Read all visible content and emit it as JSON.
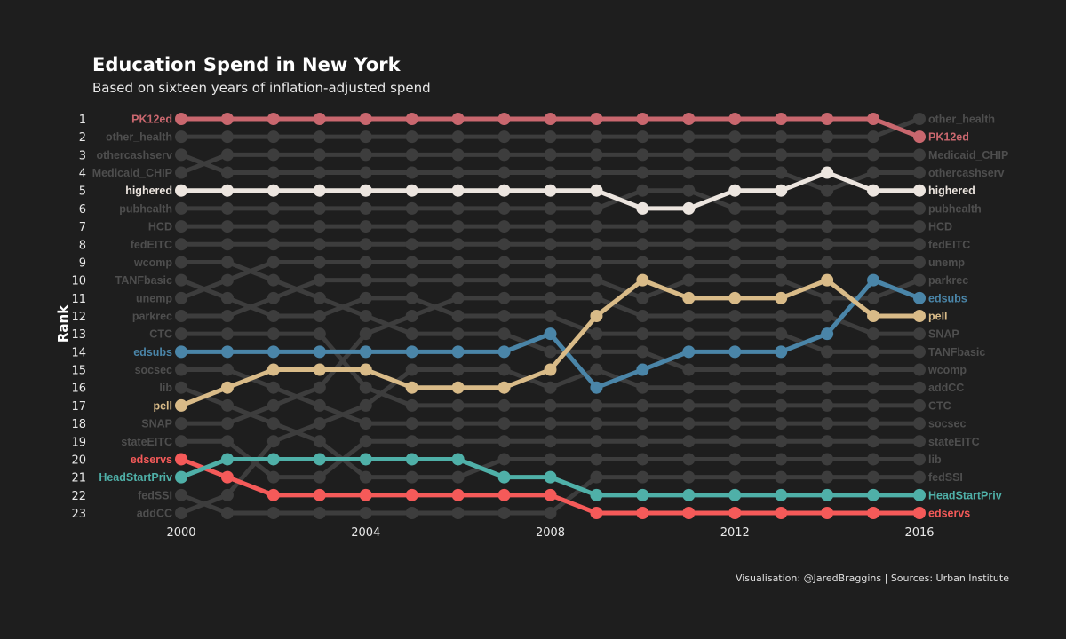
{
  "chart_data": {
    "type": "line",
    "title": "Education Spend in New York",
    "subtitle": "Based on sixteen years of inflation-adjusted spend",
    "ylabel": "Rank",
    "xlabel": "",
    "x": [
      2000,
      2001,
      2002,
      2003,
      2004,
      2005,
      2006,
      2007,
      2008,
      2009,
      2010,
      2011,
      2012,
      2013,
      2014,
      2015,
      2016
    ],
    "x_ticks": [
      2000,
      2004,
      2008,
      2012,
      2016
    ],
    "y_ticks": [
      1,
      2,
      3,
      4,
      5,
      6,
      7,
      8,
      9,
      10,
      11,
      12,
      13,
      14,
      15,
      16,
      17,
      18,
      19,
      20,
      21,
      22,
      23
    ],
    "ylim": [
      1,
      23
    ],
    "y_reversed": true,
    "grid": false,
    "start_order": [
      "PK12ed",
      "other_health",
      "othercashserv",
      "Medicaid_CHIP",
      "highered",
      "pubhealth",
      "HCD",
      "fedEITC",
      "wcomp",
      "TANFbasic",
      "unemp",
      "parkrec",
      "CTC",
      "edsubs",
      "socsec",
      "lib",
      "pell",
      "SNAP",
      "stateEITC",
      "edservs",
      "HeadStartPriv",
      "fedSSI",
      "addCC"
    ],
    "end_order": [
      "other_health",
      "PK12ed",
      "Medicaid_CHIP",
      "othercashserv",
      "highered",
      "pubhealth",
      "HCD",
      "fedEITC",
      "unemp",
      "parkrec",
      "edsubs",
      "pell",
      "SNAP",
      "TANFbasic",
      "wcomp",
      "addCC",
      "CTC",
      "socsec",
      "stateEITC",
      "lib",
      "fedSSI",
      "HeadStartPriv",
      "edservs"
    ],
    "highlighted_series": [
      {
        "name": "PK12ed",
        "color": "#c9676e",
        "values": [
          1,
          1,
          1,
          1,
          1,
          1,
          1,
          1,
          1,
          1,
          1,
          1,
          1,
          1,
          1,
          1,
          2
        ]
      },
      {
        "name": "highered",
        "color": "#ece5df",
        "values": [
          5,
          5,
          5,
          5,
          5,
          5,
          5,
          5,
          5,
          5,
          6,
          6,
          5,
          5,
          4,
          5,
          5
        ]
      },
      {
        "name": "edsubs",
        "color": "#4a85a8",
        "values": [
          14,
          14,
          14,
          14,
          14,
          14,
          14,
          14,
          13,
          16,
          15,
          14,
          14,
          14,
          13,
          10,
          11
        ]
      },
      {
        "name": "pell",
        "color": "#d9bb88",
        "values": [
          17,
          16,
          15,
          15,
          15,
          16,
          16,
          16,
          15,
          12,
          10,
          11,
          11,
          11,
          10,
          12,
          12
        ]
      },
      {
        "name": "edservs",
        "color": "#f55a59",
        "values": [
          20,
          21,
          22,
          22,
          22,
          22,
          22,
          22,
          22,
          23,
          23,
          23,
          23,
          23,
          23,
          23,
          23
        ]
      },
      {
        "name": "HeadStartPriv",
        "color": "#4fb0a8",
        "values": [
          21,
          20,
          20,
          20,
          20,
          20,
          20,
          21,
          21,
          22,
          22,
          22,
          22,
          22,
          22,
          22,
          22
        ]
      }
    ],
    "background_color": "#3d3d3d",
    "background_label_color": "#4e4e4e",
    "caption": "Visualisation: @JaredBraggins | Sources: Urban Institute"
  }
}
